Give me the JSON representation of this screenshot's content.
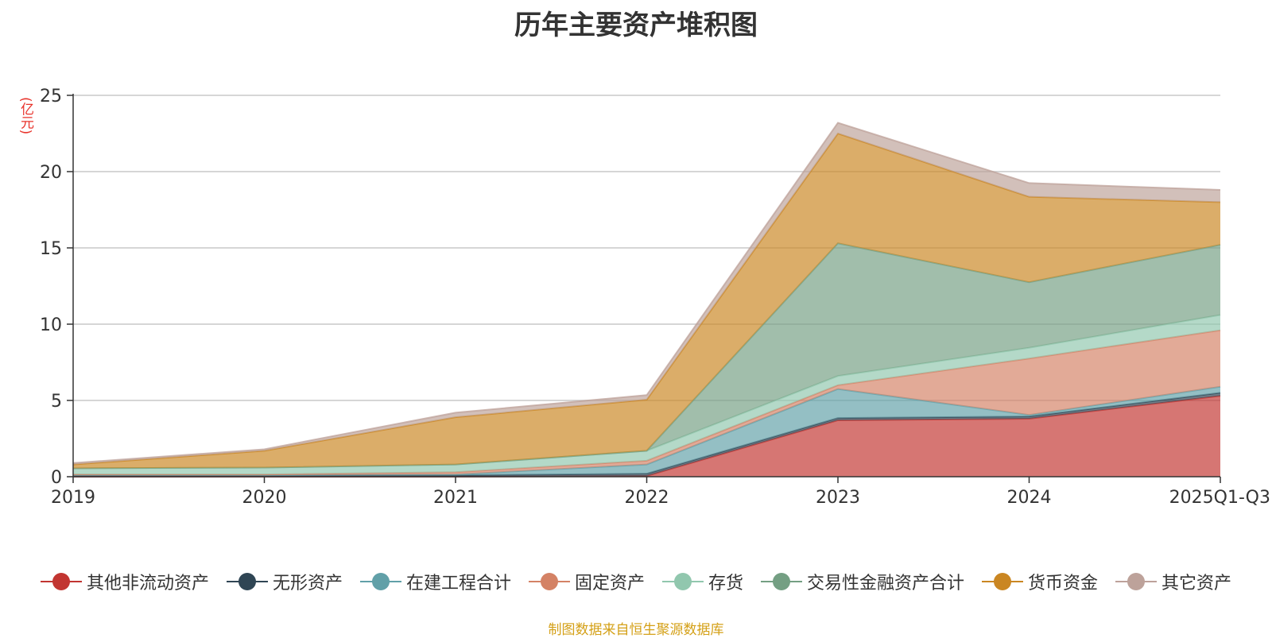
{
  "chart_data": {
    "type": "area",
    "title": "历年主要资产堆积图",
    "unit": "(亿元)",
    "x": [
      "2019",
      "2020",
      "2021",
      "2022",
      "2023",
      "2024",
      "2025Q1-Q3"
    ],
    "ylim": [
      0,
      25
    ],
    "yticks": [
      "0",
      "5",
      "10",
      "15",
      "20",
      "25"
    ],
    "grid": true,
    "stacked": true,
    "series": [
      {
        "name": "其他非流动资产",
        "color": "#c23531",
        "values": [
          0.0,
          0.0,
          0.0,
          0.05,
          3.7,
          3.8,
          5.3
        ]
      },
      {
        "name": "无形资产",
        "color": "#2f4554",
        "values": [
          0.1,
          0.1,
          0.1,
          0.15,
          0.15,
          0.15,
          0.2
        ]
      },
      {
        "name": "在建工程合计",
        "color": "#61a0a8",
        "values": [
          0.0,
          0.0,
          0.05,
          0.6,
          1.9,
          0.1,
          0.4
        ]
      },
      {
        "name": "固定资产",
        "color": "#d48265",
        "values": [
          0.05,
          0.05,
          0.15,
          0.25,
          0.25,
          3.7,
          3.7
        ]
      },
      {
        "name": "存货",
        "color": "#91c7ae",
        "values": [
          0.4,
          0.45,
          0.5,
          0.65,
          0.6,
          0.7,
          1.0
        ]
      },
      {
        "name": "交易性金融资产合计",
        "color": "#749f83",
        "values": [
          0.0,
          0.0,
          0.0,
          0.0,
          8.7,
          4.3,
          4.6
        ]
      },
      {
        "name": "货币资金",
        "color": "#ca8622",
        "values": [
          0.25,
          1.1,
          3.1,
          3.35,
          7.2,
          5.6,
          2.8
        ]
      },
      {
        "name": "其它资产",
        "color": "#bda29a",
        "values": [
          0.1,
          0.1,
          0.3,
          0.3,
          0.7,
          0.9,
          0.8
        ]
      }
    ],
    "legend_position": "bottom"
  },
  "source_note": "制图数据来自恒生聚源数据库"
}
